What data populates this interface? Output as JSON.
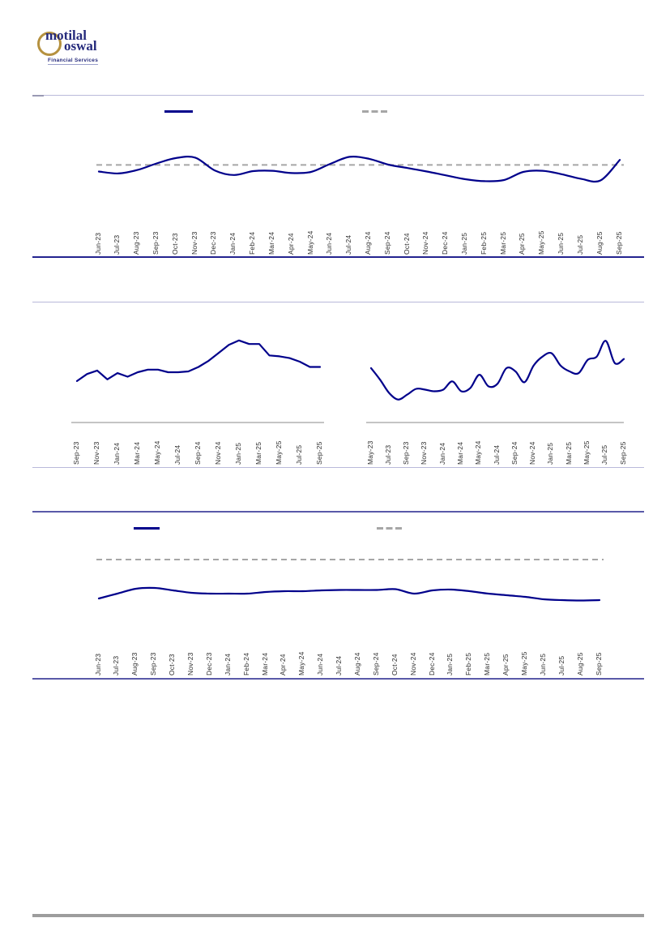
{
  "logo": {
    "line1": "motilal",
    "line2": "oswal",
    "tagline": "Financial Services"
  },
  "colors": {
    "series_navy": "#00008b",
    "benchmark_dashed_gray": "#a6a6a6",
    "hairline_lavender": "#b9b9da",
    "chart_border_navy": "#23238f",
    "section_border_purple": "#5a5aa8",
    "footer_bar_gray": "#9d9d9d",
    "axis_line_gray": "#a0a0a0",
    "tick_label_color": "#2e2e2e",
    "logo_navy": "#252a7c",
    "logo_gold": "#b5913f"
  },
  "chart_data": [
    {
      "id": "top-line-chart",
      "type": "line",
      "title": "",
      "xlabel": "",
      "ylabel": "",
      "grid": false,
      "y_axis_visible": false,
      "values_estimated": true,
      "legend": {
        "position": "top",
        "entries": [
          {
            "swatch": "solid-navy-line",
            "label": ""
          },
          {
            "swatch": "dashed-gray-line",
            "label": ""
          }
        ]
      },
      "tick_labels": [
        "Jun-23",
        "Jul-23",
        "Aug-23",
        "Sep-23",
        "Oct-23",
        "Nov-23",
        "Dec-23",
        "Jan-24",
        "Feb-24",
        "Mar-24",
        "Apr-24",
        "May-24",
        "Jun-24",
        "Jul-24",
        "Aug-24",
        "Sep-24",
        "Oct-24",
        "Nov-24",
        "Dec-24",
        "Jan-25",
        "Feb-25",
        "Mar-25",
        "Apr-25",
        "May-25",
        "Jun-25",
        "Jul-25",
        "Aug-25",
        "Sep-25"
      ],
      "ylim": [
        94,
        104.5
      ],
      "series": [
        {
          "name": "",
          "style": "solid",
          "color": "#00008b",
          "values": [
            98.3,
            97.8,
            98.7,
            100.4,
            101.8,
            101.9,
            98.6,
            97.4,
            98.4,
            98.5,
            97.9,
            98.2,
            100.3,
            102.1,
            101.6,
            100.1,
            99.2,
            98.3,
            97.3,
            96.3,
            95.8,
            96.1,
            98.2,
            98.5,
            97.6,
            96.4,
            96.0,
            101.3
          ]
        },
        {
          "name": "",
          "style": "dashed",
          "color": "#a6a6a6",
          "constant": 100
        }
      ]
    },
    {
      "id": "middle-left-line-chart",
      "type": "line",
      "title": "",
      "xlabel": "",
      "ylabel": "",
      "grid": false,
      "y_axis_visible": false,
      "values_estimated": true,
      "x_monthly_range": "Sep-23 to Sep-25",
      "tick_labels": [
        "Sep-23",
        "Nov-23",
        "Jan-24",
        "Mar-24",
        "May-24",
        "Jul-24",
        "Sep-24",
        "Nov-24",
        "Jan-25",
        "Mar-25",
        "May-25",
        "Jul-25",
        "Sep-25"
      ],
      "ylim": [
        0,
        100
      ],
      "series": [
        {
          "name": "",
          "style": "solid",
          "color": "#00008b",
          "values": [
            34,
            42,
            46,
            36,
            43,
            39,
            44,
            47,
            47,
            44,
            44,
            45,
            50,
            57,
            66,
            75,
            80,
            76,
            76,
            63,
            62,
            60,
            56,
            50,
            50
          ]
        }
      ]
    },
    {
      "id": "middle-right-line-chart",
      "type": "line",
      "title": "",
      "xlabel": "",
      "ylabel": "",
      "grid": false,
      "y_axis_visible": false,
      "values_estimated": true,
      "x_monthly_range": "May-23 to Sep-25",
      "tick_labels": [
        "May-23",
        "Jul-23",
        "Sep-23",
        "Nov-23",
        "Jan-24",
        "Mar-24",
        "May-24",
        "Jul-24",
        "Sep-24",
        "Nov-24",
        "Jan-25",
        "Mar-25",
        "May-25",
        "Jul-25",
        "Sep-25"
      ],
      "ylim": [
        0,
        100
      ],
      "series": [
        {
          "name": "",
          "style": "solid",
          "color": "#00008b",
          "values": [
            52,
            38,
            22,
            14,
            20,
            27,
            26,
            24,
            26,
            36,
            24,
            28,
            44,
            30,
            33,
            52,
            48,
            35,
            55,
            66,
            70,
            55,
            48,
            46,
            62,
            66,
            85,
            58,
            63
          ]
        }
      ]
    },
    {
      "id": "bottom-line-chart",
      "type": "line",
      "title": "",
      "xlabel": "",
      "ylabel": "",
      "grid": false,
      "y_axis_visible": false,
      "values_estimated": true,
      "legend": {
        "position": "top",
        "entries": [
          {
            "swatch": "solid-navy-line",
            "label": ""
          },
          {
            "swatch": "dashed-gray-line",
            "label": ""
          }
        ]
      },
      "tick_labels": [
        "Jun-23",
        "Jul-23",
        "Aug-23",
        "Sep-23",
        "Oct-23",
        "Nov-23",
        "Dec-23",
        "Jan-24",
        "Feb-24",
        "Mar-24",
        "Apr-24",
        "May-24",
        "Jun-24",
        "Jul-24",
        "Aug-24",
        "Sep-24",
        "Oct-24",
        "Nov-24",
        "Dec-24",
        "Jan-25",
        "Feb-25",
        "Mar-25",
        "Apr-25",
        "May-25",
        "Jun-25",
        "Jul-25",
        "Aug-25",
        "Sep-25"
      ],
      "ylim": [
        10,
        115
      ],
      "series": [
        {
          "name": "",
          "style": "solid",
          "color": "#00008b",
          "values": [
            52,
            58,
            64,
            65,
            62,
            59,
            58,
            58,
            58,
            60,
            61,
            61,
            62,
            62.5,
            62.5,
            62.5,
            63.5,
            58,
            62,
            63,
            61,
            58,
            56,
            54,
            51,
            50,
            49.5,
            50
          ]
        },
        {
          "name": "",
          "style": "dashed",
          "color": "#a6a6a6",
          "constant": 100
        }
      ]
    }
  ]
}
